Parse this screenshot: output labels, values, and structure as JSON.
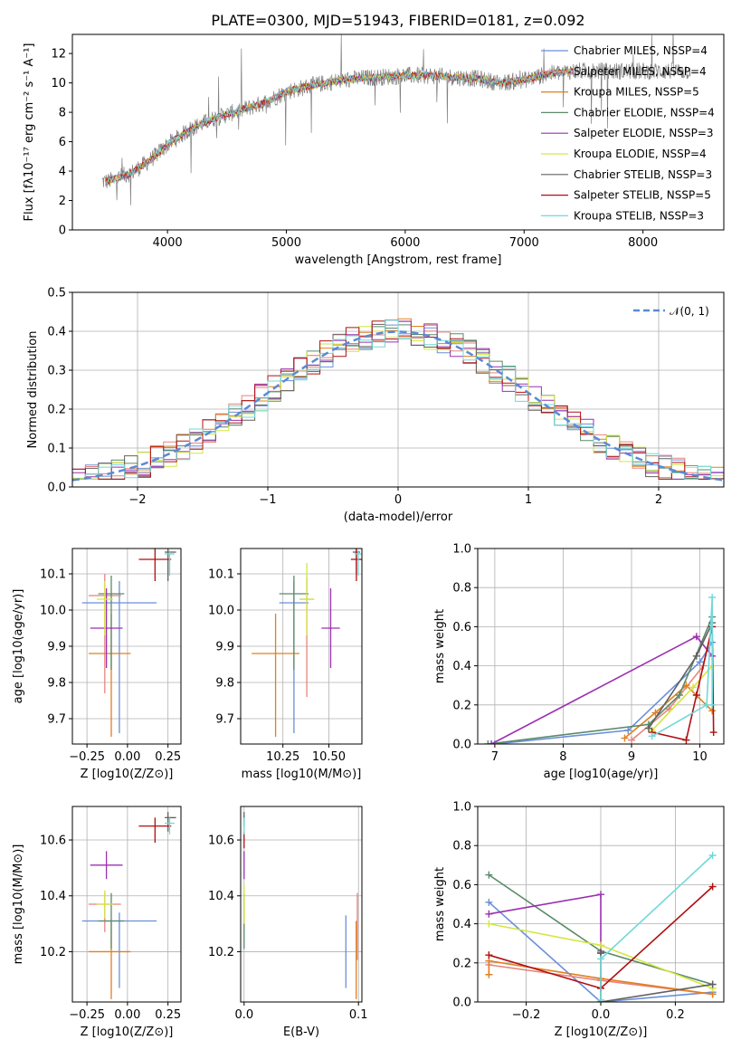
{
  "title": "PLATE=0300, MJD=51943, FIBERID=0181, z=0.092",
  "chart_data": [
    {
      "id": "spectrum",
      "type": "line",
      "xlabel": "wavelength [Angstrom, rest frame]",
      "ylabel": "Flux [fλ10⁻¹⁷ erg cm⁻² s⁻¹ A⁻¹]",
      "xlim": [
        3200,
        8680
      ],
      "ylim": [
        0,
        13.3
      ],
      "xticks": [
        4000,
        5000,
        6000,
        7000,
        8000
      ],
      "yticks": [
        0,
        2,
        4,
        6,
        8,
        10,
        12
      ],
      "grid": false,
      "legend_position": "upper-right",
      "legend": [
        {
          "label": "Chabrier MILES, N_SSP=4",
          "color": "#6a8fd9"
        },
        {
          "label": "Salpeter MILES, N_SSP=4",
          "color": "#e8847e"
        },
        {
          "label": "Kroupa MILES, N_SSP=5",
          "color": "#e08020"
        },
        {
          "label": "Chabrier ELODIE, N_SSP=4",
          "color": "#5a8a6a"
        },
        {
          "label": "Salpeter ELODIE, N_SSP=3",
          "color": "#9b30b0"
        },
        {
          "label": "Kroupa ELODIE, N_SSP=4",
          "color": "#d4e640"
        },
        {
          "label": "Chabrier STELIB, N_SSP=3",
          "color": "#606060"
        },
        {
          "label": "Salpeter STELIB, N_SSP=5",
          "color": "#b01010"
        },
        {
          "label": "Kroupa STELIB, N_SSP=3",
          "color": "#70d8d8"
        }
      ],
      "continuum": {
        "x": [
          3500,
          3700,
          3850,
          4000,
          4200,
          4400,
          4600,
          4800,
          5000,
          5200,
          5400,
          5600,
          5800,
          6000,
          6200,
          6400,
          6600,
          6800,
          7000,
          7200,
          7400
        ],
        "y": [
          3.3,
          3.9,
          4.7,
          5.8,
          6.9,
          7.6,
          8.1,
          8.6,
          9.4,
          9.8,
          10.1,
          10.3,
          10.4,
          10.5,
          10.5,
          10.4,
          10.3,
          10.0,
          10.2,
          10.6,
          10.8
        ]
      },
      "data_spectrum_range": [
        3450,
        8400
      ]
    },
    {
      "id": "residuals",
      "type": "histogram",
      "xlabel": "(data-model)/error",
      "ylabel": "Normed distribution",
      "xlim": [
        -2.5,
        2.5
      ],
      "ylim": [
        0,
        0.5
      ],
      "xticks": [
        -2,
        -1,
        0,
        1,
        2
      ],
      "yticks": [
        0.0,
        0.1,
        0.2,
        0.3,
        0.4,
        0.5
      ],
      "grid": true,
      "legend": [
        {
          "label": "𝒩(0, 1)",
          "color": "#5b8ad6",
          "style": "dashed"
        }
      ],
      "legend_position": "upper-right",
      "bin_width": 0.1,
      "reference_curve": "normal(0,1)",
      "series_colors": [
        "#6a8fd9",
        "#e8847e",
        "#e08020",
        "#5a8a6a",
        "#9b30b0",
        "#d4e640",
        "#606060",
        "#b01010",
        "#70d8d8"
      ]
    },
    {
      "id": "age_vs_Z",
      "type": "errorbar",
      "xlabel": "Z [log10(Z/Z⊙)]",
      "ylabel": "age  [log10(age/yr)]",
      "xlim": [
        -0.34,
        0.33
      ],
      "ylim": [
        9.63,
        10.17
      ],
      "xticks": [
        -0.25,
        0.0,
        0.25
      ],
      "xticklabels": [
        "−0.25",
        "0.00",
        "0.25"
      ],
      "yticks": [
        9.7,
        9.8,
        9.9,
        10.0,
        10.1
      ],
      "grid": true,
      "points": [
        {
          "x": -0.05,
          "y": 10.02,
          "xerr": [
            0.23,
            0.23
          ],
          "yerr": [
            0.36,
            0.06
          ],
          "color": "#6a8fd9"
        },
        {
          "x": -0.14,
          "y": 10.04,
          "xerr": [
            0.1,
            0.1
          ],
          "yerr": [
            0.27,
            0.06
          ],
          "color": "#e8847e"
        },
        {
          "x": -0.1,
          "y": 9.88,
          "xerr": [
            0.14,
            0.12
          ],
          "yerr": [
            0.23,
            0.11
          ],
          "color": "#e08020"
        },
        {
          "x": -0.1,
          "y": 10.045,
          "xerr": [
            0.08,
            0.08
          ],
          "yerr": [
            0.21,
            0.05
          ],
          "color": "#5a8a6a"
        },
        {
          "x": -0.13,
          "y": 9.95,
          "xerr": [
            0.1,
            0.1
          ],
          "yerr": [
            0.11,
            0.11
          ],
          "color": "#9b30b0"
        },
        {
          "x": -0.14,
          "y": 10.03,
          "xerr": [
            0.05,
            0.05
          ],
          "yerr": [
            0.1,
            0.05
          ],
          "color": "#d4e640"
        },
        {
          "x": 0.25,
          "y": 10.16,
          "xerr": [
            0.02,
            0.05
          ],
          "yerr": [
            0.08,
            0.01
          ],
          "color": "#606060"
        },
        {
          "x": 0.17,
          "y": 10.14,
          "xerr": [
            0.1,
            0.1
          ],
          "yerr": [
            0.06,
            0.04
          ],
          "color": "#b01010"
        },
        {
          "x": 0.26,
          "y": 10.155,
          "xerr": [
            0.03,
            0.03
          ],
          "yerr": [
            0.06,
            0.01
          ],
          "color": "#70d8d8"
        }
      ]
    },
    {
      "id": "age_vs_mass",
      "type": "errorbar",
      "xlabel": "mass [log10(M/M⊙)]",
      "ylabel": "",
      "xlim": [
        10.02,
        10.68
      ],
      "ylim": [
        9.63,
        10.17
      ],
      "xticks": [
        10.25,
        10.5
      ],
      "xticklabels": [
        "10.25",
        "10.50"
      ],
      "yticks": [
        9.7,
        9.8,
        9.9,
        10.0,
        10.1
      ],
      "grid": true,
      "points": [
        {
          "x": 10.31,
          "y": 10.02,
          "xerr": [
            0.08,
            0.08
          ],
          "yerr": [
            0.36,
            0.06
          ],
          "color": "#6a8fd9"
        },
        {
          "x": 10.38,
          "y": 10.03,
          "xerr": [
            0.04,
            0.04
          ],
          "yerr": [
            0.27,
            0.06
          ],
          "color": "#e8847e"
        },
        {
          "x": 10.21,
          "y": 9.88,
          "xerr": [
            0.13,
            0.13
          ],
          "yerr": [
            0.23,
            0.11
          ],
          "color": "#e08020"
        },
        {
          "x": 10.31,
          "y": 10.045,
          "xerr": [
            0.08,
            0.08
          ],
          "yerr": [
            0.21,
            0.05
          ],
          "color": "#5a8a6a"
        },
        {
          "x": 10.51,
          "y": 9.95,
          "xerr": [
            0.05,
            0.05
          ],
          "yerr": [
            0.11,
            0.11
          ],
          "color": "#9b30b0"
        },
        {
          "x": 10.38,
          "y": 10.03,
          "xerr": [
            0.04,
            0.04
          ],
          "yerr": [
            0.1,
            0.1
          ],
          "color": "#d4e640"
        },
        {
          "x": 10.65,
          "y": 10.16,
          "xerr": [
            0.02,
            0.02
          ],
          "yerr": [
            0.06,
            0.01
          ],
          "color": "#606060"
        },
        {
          "x": 10.65,
          "y": 10.14,
          "xerr": [
            0.03,
            0.03
          ],
          "yerr": [
            0.06,
            0.04
          ],
          "color": "#b01010"
        },
        {
          "x": 10.66,
          "y": 10.155,
          "xerr": [
            0.02,
            0.02
          ],
          "yerr": [
            0.06,
            0.01
          ],
          "color": "#70d8d8"
        }
      ]
    },
    {
      "id": "weight_vs_age",
      "type": "line",
      "xlabel": "age  [log10(age/yr)]",
      "ylabel": "mass weight",
      "xlim": [
        6.75,
        10.35
      ],
      "ylim": [
        0,
        1
      ],
      "xticks": [
        7,
        8,
        9,
        10
      ],
      "yticks": [
        0.0,
        0.2,
        0.4,
        0.6,
        0.8,
        1.0
      ],
      "grid": true,
      "series": [
        {
          "color": "#6a8fd9",
          "x": [
            7.0,
            8.95,
            10.0,
            10.18
          ],
          "y": [
            0.0,
            0.07,
            0.42,
            0.52
          ]
        },
        {
          "color": "#e8847e",
          "x": [
            9.0,
            9.55,
            10.05,
            10.18
          ],
          "y": [
            0.02,
            0.18,
            0.4,
            0.6
          ]
        },
        {
          "color": "#e08020",
          "x": [
            8.9,
            9.35,
            9.8,
            10.18
          ],
          "y": [
            0.03,
            0.16,
            0.3,
            0.17
          ]
        },
        {
          "color": "#5a8a6a",
          "x": [
            6.9,
            9.25,
            9.7,
            10.18
          ],
          "y": [
            0.0,
            0.1,
            0.25,
            0.65
          ]
        },
        {
          "color": "#9b30b0",
          "x": [
            6.95,
            9.95,
            10.18
          ],
          "y": [
            0.0,
            0.55,
            0.45
          ]
        },
        {
          "color": "#d4e640",
          "x": [
            9.3,
            9.9,
            10.18
          ],
          "y": [
            0.07,
            0.29,
            0.4
          ]
        },
        {
          "color": "#606060",
          "x": [
            9.25,
            9.95,
            10.18
          ],
          "y": [
            0.08,
            0.45,
            0.62
          ]
        },
        {
          "color": "#b01010",
          "x": [
            9.3,
            9.8,
            9.95,
            10.18,
            10.2
          ],
          "y": [
            0.06,
            0.02,
            0.25,
            0.6,
            0.06
          ]
        },
        {
          "color": "#70d8d8",
          "x": [
            9.3,
            10.1,
            10.18,
            10.18
          ],
          "y": [
            0.04,
            0.2,
            0.75,
            0.2
          ]
        }
      ]
    },
    {
      "id": "mass_vs_Z",
      "type": "errorbar",
      "xlabel": "Z [log10(Z/Z⊙)]",
      "ylabel": "mass [log10(M/M⊙)]",
      "xlim": [
        -0.34,
        0.33
      ],
      "ylim": [
        10.02,
        10.72
      ],
      "xticks": [
        -0.25,
        0.0,
        0.25
      ],
      "xticklabels": [
        "−0.25",
        "0.00",
        "0.25"
      ],
      "yticks": [
        10.2,
        10.4,
        10.6
      ],
      "grid": true,
      "points": [
        {
          "x": -0.05,
          "y": 10.31,
          "xerr": [
            0.23,
            0.23
          ],
          "yerr": [
            0.24,
            0.03
          ],
          "color": "#6a8fd9"
        },
        {
          "x": -0.14,
          "y": 10.37,
          "xerr": [
            0.1,
            0.1
          ],
          "yerr": [
            0.1,
            0.04
          ],
          "color": "#e8847e"
        },
        {
          "x": -0.1,
          "y": 10.2,
          "xerr": [
            0.14,
            0.12
          ],
          "yerr": [
            0.17,
            0.11
          ],
          "color": "#e08020"
        },
        {
          "x": -0.1,
          "y": 10.31,
          "xerr": [
            0.08,
            0.08
          ],
          "yerr": [
            0.1,
            0.1
          ],
          "color": "#5a8a6a"
        },
        {
          "x": -0.13,
          "y": 10.51,
          "xerr": [
            0.1,
            0.1
          ],
          "yerr": [
            0.05,
            0.05
          ],
          "color": "#9b30b0"
        },
        {
          "x": -0.14,
          "y": 10.37,
          "xerr": [
            0.05,
            0.05
          ],
          "yerr": [
            0.05,
            0.05
          ],
          "color": "#d4e640"
        },
        {
          "x": 0.25,
          "y": 10.68,
          "xerr": [
            0.02,
            0.05
          ],
          "yerr": [
            0.05,
            0.02
          ],
          "color": "#606060"
        },
        {
          "x": 0.17,
          "y": 10.65,
          "xerr": [
            0.1,
            0.1
          ],
          "yerr": [
            0.06,
            0.03
          ],
          "color": "#b01010"
        },
        {
          "x": 0.26,
          "y": 10.66,
          "xerr": [
            0.03,
            0.03
          ],
          "yerr": [
            0.04,
            0.02
          ],
          "color": "#70d8d8"
        }
      ]
    },
    {
      "id": "mass_vs_ebv",
      "type": "errorbar",
      "xlabel": "E(B-V)",
      "ylabel": "",
      "xlim": [
        -0.003,
        0.103
      ],
      "ylim": [
        10.02,
        10.72
      ],
      "xticks": [
        0.0,
        0.1
      ],
      "xticklabels": [
        "0.0",
        "0.1"
      ],
      "yticks": [
        10.2,
        10.4,
        10.6
      ],
      "grid": true,
      "points": [
        {
          "x": 0.089,
          "y": 10.2,
          "xerr": [
            0,
            0
          ],
          "yerr": [
            0.13,
            0.13
          ],
          "color": "#6a8fd9"
        },
        {
          "x": 0.099,
          "y": 10.3,
          "xerr": [
            0,
            0
          ],
          "yerr": [
            0.13,
            0.11
          ],
          "color": "#e8847e"
        },
        {
          "x": 0.098,
          "y": 10.2,
          "xerr": [
            0,
            0
          ],
          "yerr": [
            0.17,
            0.11
          ],
          "color": "#e08020"
        },
        {
          "x": 0.0,
          "y": 10.31,
          "xerr": [
            0,
            0
          ],
          "yerr": [
            0.1,
            0.1
          ],
          "color": "#5a8a6a"
        },
        {
          "x": 0.0,
          "y": 10.51,
          "xerr": [
            0,
            0
          ],
          "yerr": [
            0.05,
            0.05
          ],
          "color": "#9b30b0"
        },
        {
          "x": 0.0,
          "y": 10.37,
          "xerr": [
            0,
            0
          ],
          "yerr": [
            0.07,
            0.07
          ],
          "color": "#d4e640"
        },
        {
          "x": 0.0,
          "y": 10.68,
          "xerr": [
            0,
            0
          ],
          "yerr": [
            0.03,
            0.02
          ],
          "color": "#606060"
        },
        {
          "x": 0.0,
          "y": 10.6,
          "xerr": [
            0,
            0
          ],
          "yerr": [
            0.03,
            0.03
          ],
          "color": "#b01010"
        },
        {
          "x": 0.0,
          "y": 10.66,
          "xerr": [
            0,
            0
          ],
          "yerr": [
            0.04,
            0.02
          ],
          "color": "#70d8d8"
        }
      ]
    },
    {
      "id": "weight_vs_Z",
      "type": "line",
      "xlabel": "Z [log10(Z/Z⊙)]",
      "ylabel": "mass weight",
      "xlim": [
        -0.33,
        0.33
      ],
      "ylim": [
        0,
        1
      ],
      "xticks": [
        -0.2,
        0.0,
        0.2
      ],
      "xticklabels": [
        "−0.2",
        "0.0",
        "0.2"
      ],
      "yticks": [
        0.0,
        0.2,
        0.4,
        0.6,
        0.8,
        1.0
      ],
      "grid": true,
      "series": [
        {
          "color": "#6a8fd9",
          "x": [
            -0.3,
            0.0,
            0.3
          ],
          "y": [
            0.51,
            0.0,
            0.05
          ]
        },
        {
          "color": "#e8847e",
          "x": [
            -0.3,
            0.0,
            0.3
          ],
          "y": [
            0.19,
            0.11,
            0.04
          ]
        },
        {
          "color": "#e08020",
          "x": [
            -0.3,
            -0.3,
            0.0,
            0.3
          ],
          "y": [
            0.14,
            0.21,
            0.12,
            0.04
          ]
        },
        {
          "color": "#5a8a6a",
          "x": [
            -0.3,
            0.0,
            0.3
          ],
          "y": [
            0.65,
            0.26,
            0.09
          ]
        },
        {
          "color": "#9b30b0",
          "x": [
            -0.3,
            0.0,
            0.0
          ],
          "y": [
            0.45,
            0.55,
            0.25
          ]
        },
        {
          "color": "#d4e640",
          "x": [
            -0.3,
            0.0,
            0.3
          ],
          "y": [
            0.4,
            0.29,
            0.07
          ]
        },
        {
          "color": "#606060",
          "x": [
            0.0,
            0.0,
            0.3
          ],
          "y": [
            0.25,
            0.0,
            0.09
          ]
        },
        {
          "color": "#b01010",
          "x": [
            -0.3,
            0.0,
            0.3
          ],
          "y": [
            0.24,
            0.07,
            0.59
          ]
        },
        {
          "color": "#70d8d8",
          "x": [
            0.0,
            0.0,
            0.3
          ],
          "y": [
            0.01,
            0.22,
            0.75
          ]
        }
      ]
    }
  ]
}
